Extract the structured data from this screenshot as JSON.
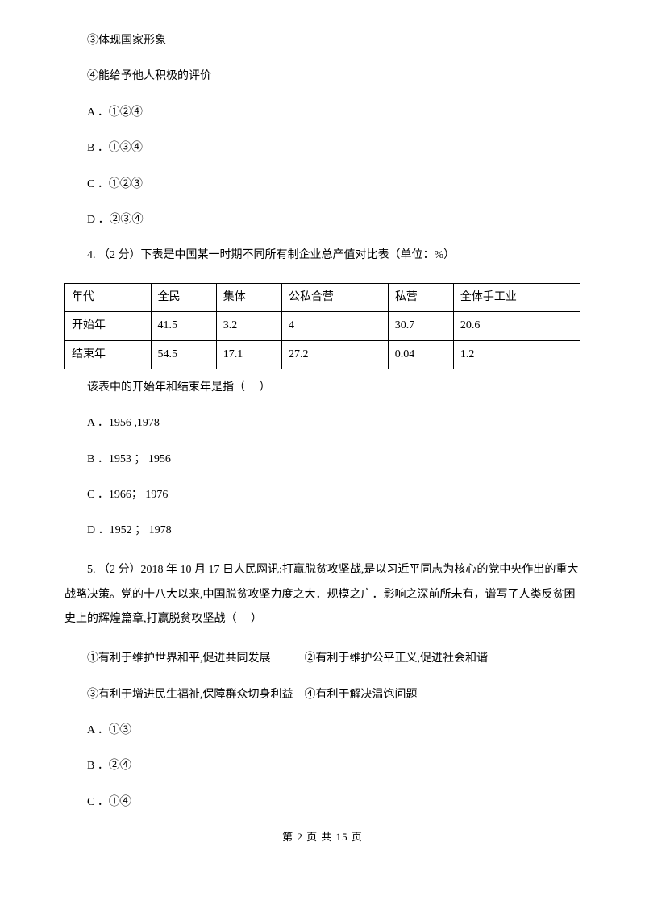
{
  "q3": {
    "statement3": "③体现国家形象",
    "statement4": "④能给予他人积极的评价",
    "optA": "A ．①②④",
    "optB": "B ．①③④",
    "optC": "C ．①②③",
    "optD": "D ．②③④"
  },
  "q4": {
    "intro": "4. （2 分）下表是中国某一时期不同所有制企业总产值对比表（单位：%）",
    "table": {
      "headers": [
        "年代",
        "全民",
        "集体",
        "公私合营",
        "私营",
        "全体手工业"
      ],
      "rows": [
        [
          "开始年",
          "41.5",
          "3.2",
          "4",
          "30.7",
          "20.6"
        ],
        [
          "结束年",
          "54.5",
          "17.1",
          "27.2",
          "0.04",
          "1.2"
        ]
      ]
    },
    "after": "该表中的开始年和结束年是指（　 ）",
    "optA": "A ．1956 ,1978",
    "optB": "B ．1953 ； 1956",
    "optC": "C ．1966； 1976",
    "optD": "D ．1952 ； 1978"
  },
  "q5": {
    "intro": "5. （2 分）2018 年 10 月 17 日人民网讯:打赢脱贫攻坚战,是以习近平同志为核心的党中央作出的重大战略决策。党的十八大以来,中国脱贫攻坚力度之大．规模之广．影响之深前所未有，谱写了人类反贫困史上的辉煌篇章,打赢脱贫攻坚战（　 ）",
    "sub1": "①有利于维护世界和平,促进共同发展　　　②有利于维护公平正义,促进社会和谐",
    "sub2": "③有利于增进民生福祉,保障群众切身利益　④有利于解决温饱问题",
    "optA": "A ．①③",
    "optB": "B ．②④",
    "optC": "C ．①④"
  },
  "footer": "第 2 页 共 15 页"
}
